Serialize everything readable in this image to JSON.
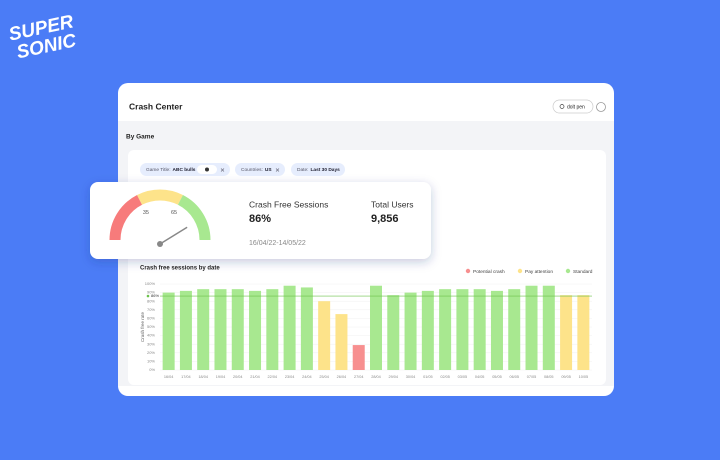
{
  "logo": {
    "line1": "SUPER",
    "line2": "SONIC"
  },
  "header": {
    "title": "Crash Center",
    "button": "dolt pen"
  },
  "section": "By Game",
  "filters": [
    {
      "label": "Game Title:",
      "value": "ABC bulls"
    },
    {
      "label": "Countries:",
      "value": "US"
    },
    {
      "label": "Date:",
      "value": "Last 30 Days"
    }
  ],
  "gauge": {
    "min": 0,
    "max": 100,
    "ticks": [
      35,
      65
    ],
    "value": 86
  },
  "kpis": [
    {
      "label": "Crash Free Sessions",
      "value": "86%"
    },
    {
      "label": "Total Users",
      "value": "9,856"
    }
  ],
  "date_range": "16/04/22-14/05/22",
  "chart_data": {
    "type": "bar",
    "title": "Crash free sessions by date",
    "y_label": "Crash free rate",
    "categories": [
      "16/04",
      "17/04",
      "18/04",
      "19/04",
      "20/04",
      "21/04",
      "22/04",
      "23/04",
      "24/04",
      "25/04",
      "26/04",
      "27/04",
      "28/04",
      "29/04",
      "30/04",
      "01/05",
      "02/05",
      "03/05",
      "04/05",
      "05/05",
      "06/05",
      "07/05",
      "08/05",
      "09/05",
      "10/05"
    ],
    "values": [
      90,
      92,
      94,
      94,
      94,
      92,
      94,
      98,
      96,
      80,
      65,
      29,
      98,
      87,
      90,
      92,
      94,
      94,
      94,
      92,
      94,
      98,
      98,
      87,
      87
    ],
    "status": [
      2,
      2,
      2,
      2,
      2,
      2,
      2,
      2,
      2,
      1,
      1,
      0,
      2,
      2,
      2,
      2,
      2,
      2,
      2,
      2,
      2,
      2,
      2,
      1,
      1
    ],
    "legend": [
      {
        "name": "Potential crash",
        "color": "#f78f8f"
      },
      {
        "name": "Pay attention",
        "color": "#fde38a"
      },
      {
        "name": "Standard",
        "color": "#a8e890"
      }
    ],
    "ylim": [
      0,
      100
    ],
    "yticks": [
      {
        "value": 0,
        "label": "0%"
      },
      {
        "value": 10,
        "label": "10%"
      },
      {
        "value": 20,
        "label": "20%"
      },
      {
        "value": 30,
        "label": "30%"
      },
      {
        "value": 40,
        "label": "40%"
      },
      {
        "value": 50,
        "label": "50%"
      },
      {
        "value": 60,
        "label": "60%"
      },
      {
        "value": 70,
        "label": "70%"
      },
      {
        "value": 80,
        "label": "80%"
      },
      {
        "value": 90,
        "label": "90%"
      },
      {
        "value": 100,
        "label": "100%"
      }
    ],
    "grid": true,
    "reference": {
      "value": 86,
      "label": "86%"
    }
  }
}
